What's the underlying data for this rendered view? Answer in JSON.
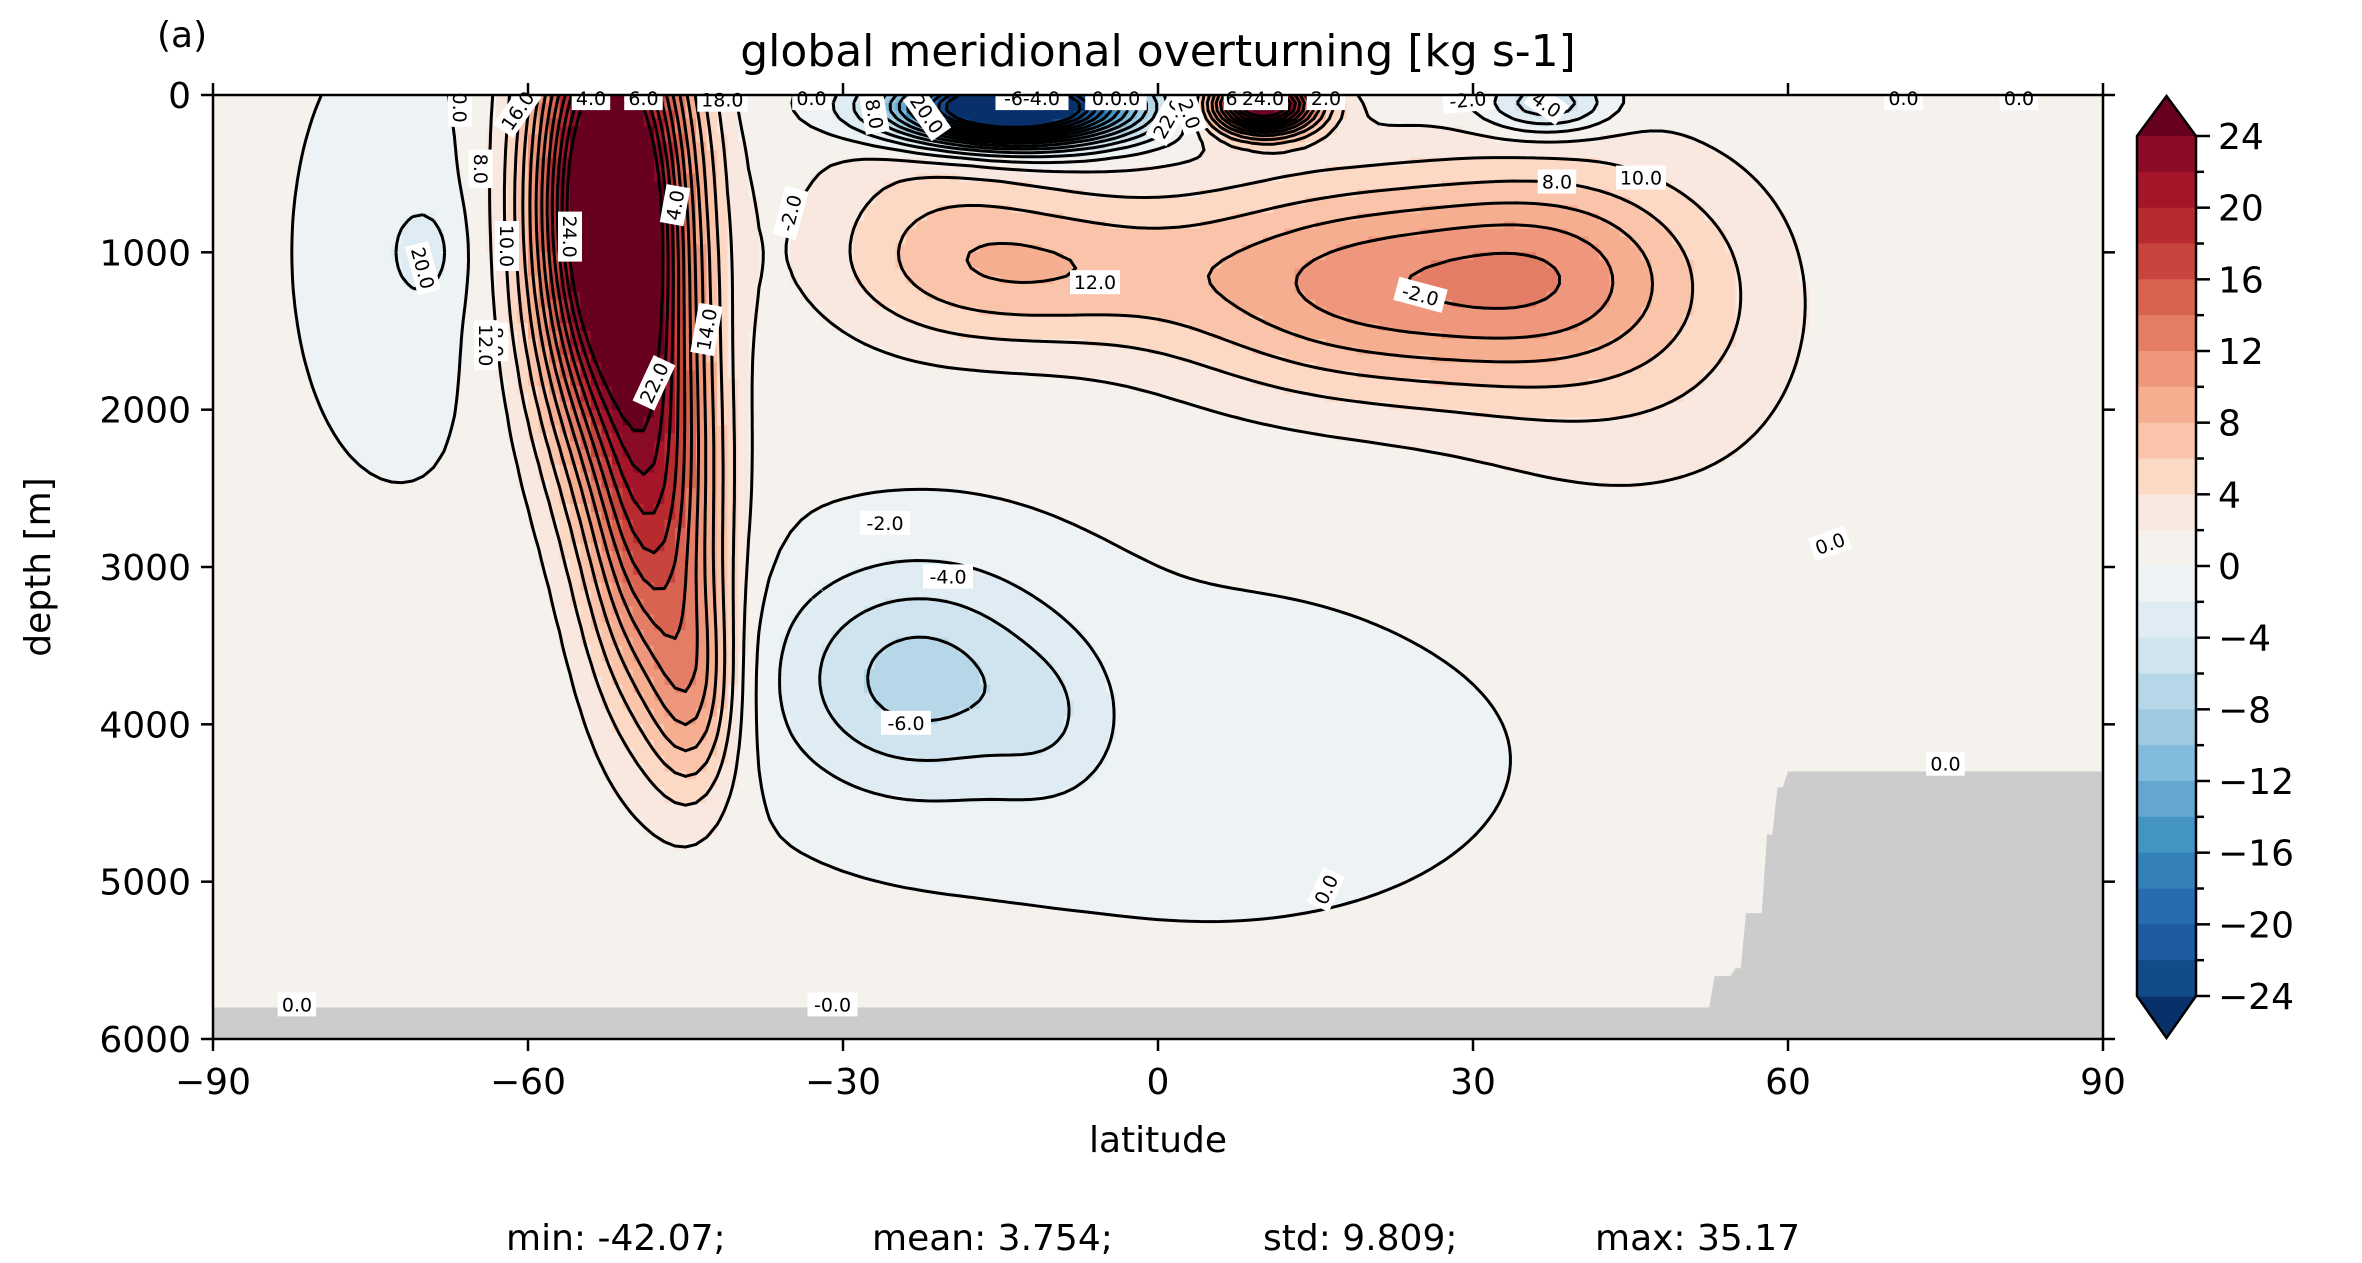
{
  "chart_data": {
    "type": "contour",
    "panel_label": "(a)",
    "title": "global meridional overturning [kg s-1]",
    "xlabel": "latitude",
    "ylabel": "depth [m]",
    "xlim": [
      -90,
      90
    ],
    "ylim": [
      6000,
      0
    ],
    "y_inverted": true,
    "xticks": [
      -90,
      -60,
      -30,
      0,
      30,
      60,
      90
    ],
    "xtick_labels": [
      "−90",
      "−60",
      "−30",
      "0",
      "30",
      "60",
      "90"
    ],
    "yticks": [
      0,
      1000,
      2000,
      3000,
      4000,
      5000,
      6000
    ],
    "ytick_labels": [
      "0",
      "1000",
      "2000",
      "3000",
      "4000",
      "5000",
      "6000"
    ],
    "colorbar": {
      "colormap": "RdBu_r",
      "range": [
        -24,
        24
      ],
      "level_step": 2,
      "extend": "both",
      "ticks": [
        24,
        20,
        16,
        12,
        8,
        4,
        0,
        -4,
        -8,
        -12,
        -16,
        -20,
        -24
      ],
      "tick_labels": [
        "24",
        "20",
        "16",
        "12",
        "8",
        "4",
        "0",
        "−4",
        "−8",
        "−12",
        "−16",
        "−20",
        "−24"
      ],
      "colors": [
        "#67001f",
        "#8a0b25",
        "#a51429",
        "#b92a2f",
        "#c8453d",
        "#d86350",
        "#e37d65",
        "#ee977c",
        "#f5ae8f",
        "#f9c4a9",
        "#fcd9c5",
        "#f8e8df",
        "#f5f1ed",
        "#edf2f5",
        "#dfecf3",
        "#cfe4ef",
        "#b6d7e8",
        "#9ecae1",
        "#82bbdb",
        "#63a6d0",
        "#4393c3",
        "#3480b9",
        "#286cb0",
        "#1d5aa0",
        "#134a8a",
        "#08306b"
      ]
    },
    "features": [
      {
        "name": "southern-ocean-deacon-cell",
        "type": "positive-cell",
        "lat_range": [
          -62,
          -38
        ],
        "depth_range": [
          0,
          4800
        ],
        "max_value": 24
      },
      {
        "name": "subtropical-south-cell",
        "type": "positive-cell",
        "lat_range": [
          -20,
          0
        ],
        "depth_range": [
          700,
          1500
        ],
        "max_value": 8
      },
      {
        "name": "tropical-surface-cell",
        "type": "negative-cell",
        "lat_range": [
          -35,
          0
        ],
        "depth_range": [
          0,
          400
        ],
        "min_value": -24
      },
      {
        "name": "northern-nadw-cell",
        "type": "positive-cell",
        "lat_range": [
          0,
          60
        ],
        "depth_range": [
          300,
          2600
        ],
        "max_value": 12
      },
      {
        "name": "northern-surface-negative",
        "type": "negative-cell",
        "lat_range": [
          29,
          47
        ],
        "depth_range": [
          0,
          300
        ],
        "min_value": -4
      },
      {
        "name": "aabw-cell",
        "type": "negative-cell",
        "lat_range": [
          -46,
          -5
        ],
        "depth_range": [
          2600,
          5100
        ],
        "min_value": -6
      },
      {
        "name": "topography",
        "type": "mask",
        "color": "#cccccc"
      }
    ],
    "contour_labels": [
      "0.0",
      "16.0",
      "4.0",
      "6.0",
      "18.0",
      "0.0",
      "8.0",
      "20.0",
      "-6-4.0",
      "0.0.0",
      "22.0",
      "2.0",
      "6",
      "24.0",
      "2.0",
      "-2.0",
      "4.0",
      "0.0",
      "0.0",
      "8.0",
      "24.0",
      "12.0",
      "-2.0",
      "20.0",
      "4.0",
      "-2.0",
      "8.0",
      "10.0",
      "8.0",
      "10.0",
      "12.0",
      "14.0",
      "22.0",
      "-2.0",
      "-4.0",
      "-6.0",
      "0.0",
      "0.0",
      "0.0",
      "0.0",
      "-0.0"
    ],
    "stats": {
      "min": "-42.07",
      "mean": "3.754",
      "std": "9.809",
      "max": "35.17"
    }
  },
  "stats_text": {
    "min": "min: -42.07;",
    "mean": "mean: 3.754;",
    "std": "std: 9.809;",
    "max": "max: 35.17"
  }
}
